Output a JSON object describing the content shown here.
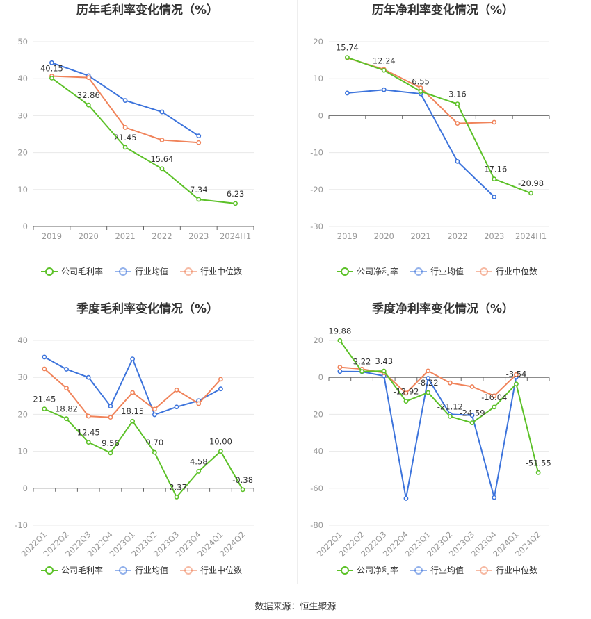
{
  "source": "数据来源：恒生聚源",
  "colors": {
    "company": "#5cc128",
    "industry_avg": "#3d74dc",
    "industry_median": "#f0835a"
  },
  "chart_data": [
    {
      "type": "line",
      "title": "历年毛利率变化情况（%）",
      "categories": [
        "2019",
        "2020",
        "2021",
        "2022",
        "2023",
        "2024H1"
      ],
      "ylim": [
        0,
        50
      ],
      "yticks": [
        0,
        10,
        20,
        30,
        40,
        50
      ],
      "rotate_x": false,
      "series": [
        {
          "name": "公司毛利率",
          "key": "company",
          "values": [
            40.15,
            32.86,
            21.45,
            15.64,
            7.34,
            6.23
          ],
          "labels": [
            "40.15",
            "32.86",
            "21.45",
            "15.64",
            "7.34",
            "6.23"
          ]
        },
        {
          "name": "行业均值",
          "key": "industry_avg",
          "values": [
            44.3,
            40.8,
            34.1,
            31.0,
            24.5,
            null
          ]
        },
        {
          "name": "行业中位数",
          "key": "industry_median",
          "values": [
            40.7,
            40.3,
            26.8,
            23.4,
            22.7,
            null
          ]
        }
      ]
    },
    {
      "type": "line",
      "title": "历年净利率变化情况（%）",
      "categories": [
        "2019",
        "2020",
        "2021",
        "2022",
        "2023",
        "2024H1"
      ],
      "ylim": [
        -30,
        20
      ],
      "yticks": [
        -30,
        -20,
        -10,
        0,
        10,
        20
      ],
      "rotate_x": false,
      "series": [
        {
          "name": "公司净利率",
          "key": "company",
          "values": [
            15.74,
            12.24,
            6.55,
            3.16,
            -17.16,
            -20.98
          ],
          "labels": [
            "15.74",
            "12.24",
            "6.55",
            "3.16",
            "-17.16",
            "-20.98"
          ]
        },
        {
          "name": "行业均值",
          "key": "industry_avg",
          "values": [
            6.1,
            7.0,
            5.9,
            -12.4,
            -22.0,
            null
          ]
        },
        {
          "name": "行业中位数",
          "key": "industry_median",
          "values": [
            15.6,
            12.5,
            7.5,
            -2.1,
            -1.8,
            null
          ]
        }
      ]
    },
    {
      "type": "line",
      "title": "季度毛利率变化情况（%）",
      "categories": [
        "2022Q1",
        "2022Q2",
        "2022Q3",
        "2022Q4",
        "2023Q1",
        "2023Q2",
        "2023Q3",
        "2023Q4",
        "2024Q1",
        "2024Q2"
      ],
      "ylim": [
        -10,
        40
      ],
      "yticks": [
        -10,
        0,
        10,
        20,
        30,
        40
      ],
      "rotate_x": true,
      "series": [
        {
          "name": "公司毛利率",
          "key": "company",
          "values": [
            21.45,
            18.82,
            12.45,
            9.56,
            18.15,
            9.7,
            -2.37,
            4.58,
            10.0,
            -0.38
          ],
          "labels": [
            "21.45",
            "18.82",
            "12.45",
            "9.56",
            "18.15",
            "9.70",
            "-2.37",
            "4.58",
            "10.00",
            "-0.38"
          ]
        },
        {
          "name": "行业均值",
          "key": "industry_avg",
          "values": [
            35.5,
            32.2,
            30.0,
            22.2,
            35.0,
            19.9,
            22.0,
            23.7,
            26.9,
            null
          ]
        },
        {
          "name": "行业中位数",
          "key": "industry_median",
          "values": [
            32.3,
            27.1,
            19.5,
            19.2,
            25.9,
            21.4,
            26.6,
            22.9,
            29.5,
            null
          ]
        }
      ]
    },
    {
      "type": "line",
      "title": "季度净利率变化情况（%）",
      "categories": [
        "2022Q1",
        "2022Q2",
        "2022Q3",
        "2022Q4",
        "2023Q1",
        "2023Q2",
        "2023Q3",
        "2023Q4",
        "2024Q1",
        "2024Q2"
      ],
      "ylim": [
        -80,
        20
      ],
      "yticks": [
        -80,
        -60,
        -40,
        -20,
        0,
        20
      ],
      "rotate_x": true,
      "series": [
        {
          "name": "公司净利率",
          "key": "company",
          "values": [
            19.88,
            3.22,
            3.43,
            -12.92,
            -8.22,
            -21.12,
            -24.59,
            -16.04,
            -3.54,
            -51.55
          ],
          "labels": [
            "19.88",
            "3.22",
            "3.43",
            "-12.92",
            "-8.22",
            "-21.12",
            "-24.59",
            "-16.04",
            "-3.54",
            "-51.55"
          ]
        },
        {
          "name": "行业均值",
          "key": "industry_avg",
          "values": [
            3.2,
            3.1,
            0.8,
            -65.5,
            -0.5,
            -20.0,
            -20.5,
            -65.0,
            0.3,
            null
          ]
        },
        {
          "name": "行业中位数",
          "key": "industry_median",
          "values": [
            5.5,
            4.5,
            2.5,
            -8.5,
            3.5,
            -3.0,
            -5.0,
            -10.0,
            1.5,
            null
          ]
        }
      ]
    }
  ]
}
